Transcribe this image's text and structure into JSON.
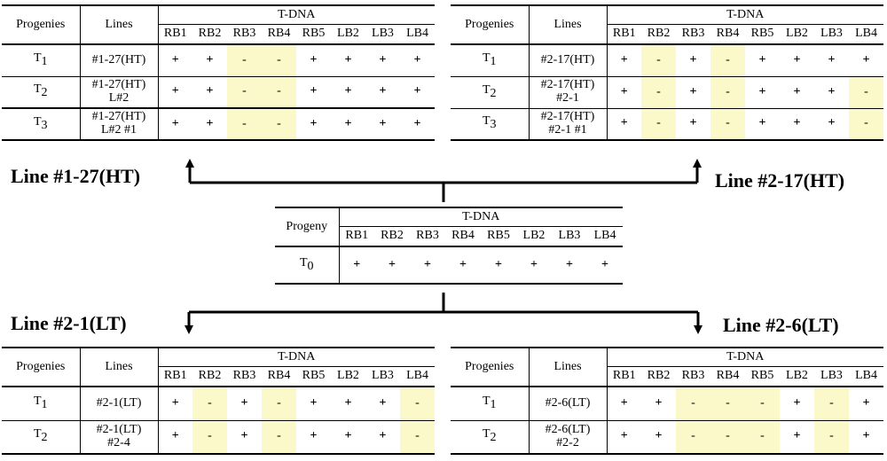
{
  "headers": {
    "progenies": "Progenies",
    "progeny": "Progeny",
    "lines": "Lines",
    "tdna": "T-DNA",
    "sites": [
      "RB1",
      "RB2",
      "RB3",
      "RB4",
      "RB5",
      "LB2",
      "LB3",
      "LB4"
    ]
  },
  "line_labels": {
    "top_left": "Line #1-27(HT)",
    "top_right": "Line #2-17(HT)",
    "bottom_left": "Line #2-1(LT)",
    "bottom_right": "Line #2-6(LT)"
  },
  "tables": {
    "t0": {
      "rows": [
        {
          "gen": "0",
          "marks": [
            "+",
            "+",
            "+",
            "+",
            "+",
            "+",
            "+",
            "+"
          ]
        }
      ]
    },
    "l1_27": {
      "rows": [
        {
          "gen": "1",
          "line1": "#1-27(HT)",
          "line2": "",
          "marks": [
            "+",
            "+",
            "-",
            "-",
            "+",
            "+",
            "+",
            "+"
          ]
        },
        {
          "gen": "2",
          "line1": "#1-27(HT)",
          "line2": "L#2",
          "marks": [
            "+",
            "+",
            "-",
            "-",
            "+",
            "+",
            "+",
            "+"
          ]
        },
        {
          "gen": "3",
          "line1": "#1-27(HT)",
          "line2": "L#2 #1",
          "marks": [
            "+",
            "+",
            "-",
            "-",
            "+",
            "+",
            "+",
            "+"
          ]
        }
      ]
    },
    "l2_17": {
      "rows": [
        {
          "gen": "1",
          "line1": "#2-17(HT)",
          "line2": "",
          "marks": [
            "+",
            "-",
            "+",
            "-",
            "+",
            "+",
            "+",
            "+"
          ]
        },
        {
          "gen": "2",
          "line1": "#2-17(HT)",
          "line2": "#2-1",
          "marks": [
            "+",
            "-",
            "+",
            "-",
            "+",
            "+",
            "+",
            "-"
          ]
        },
        {
          "gen": "3",
          "line1": "#2-17(HT)",
          "line2": "#2-1 #1",
          "marks": [
            "+",
            "-",
            "+",
            "-",
            "+",
            "+",
            "+",
            "-"
          ]
        }
      ]
    },
    "l2_1": {
      "rows": [
        {
          "gen": "1",
          "line1": "#2-1(LT)",
          "line2": "",
          "marks": [
            "+",
            "-",
            "+",
            "-",
            "+",
            "+",
            "+",
            "-"
          ]
        },
        {
          "gen": "2",
          "line1": "#2-1(LT)",
          "line2": "#2-4",
          "marks": [
            "+",
            "-",
            "+",
            "-",
            "+",
            "+",
            "+",
            "-"
          ]
        }
      ]
    },
    "l2_6": {
      "rows": [
        {
          "gen": "1",
          "line1": "#2-6(LT)",
          "line2": "",
          "marks": [
            "+",
            "+",
            "-",
            "-",
            "-",
            "+",
            "-",
            "+"
          ]
        },
        {
          "gen": "2",
          "line1": "#2-6(LT)",
          "line2": "#2-2",
          "marks": [
            "+",
            "+",
            "-",
            "-",
            "-",
            "+",
            "-",
            "+"
          ]
        }
      ]
    }
  },
  "colors": {
    "absent_highlight": "#fbf8c9",
    "text": "#000000"
  }
}
